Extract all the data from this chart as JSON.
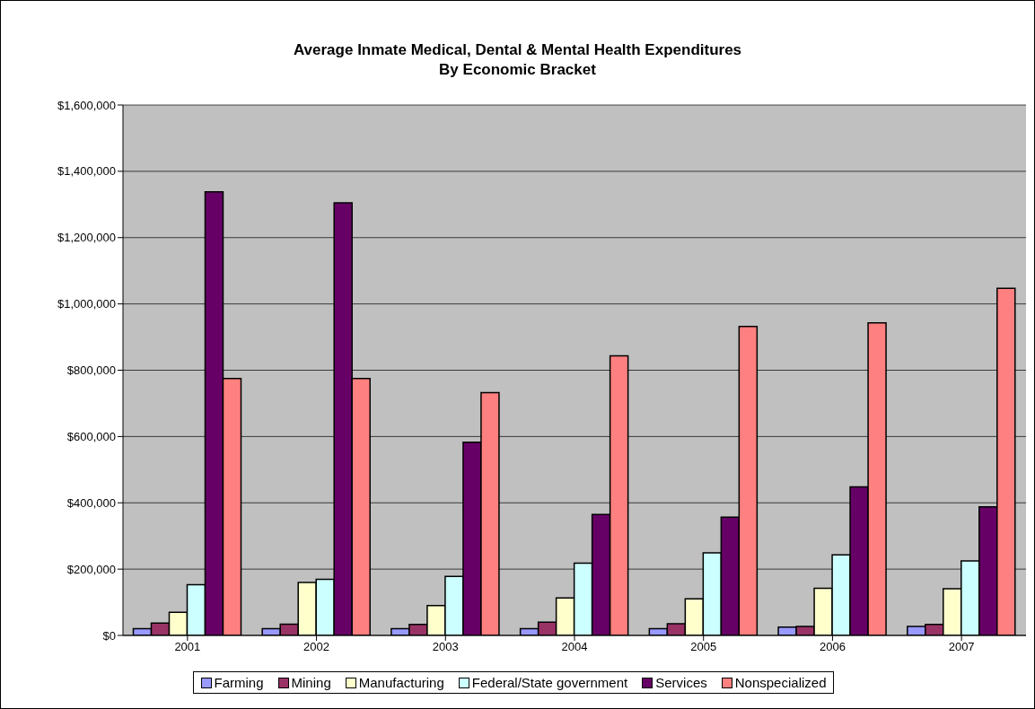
{
  "chart_data": {
    "type": "bar",
    "title": "Average Inmate Medical, Dental & Mental Health Expenditures\nBy Economic Bracket",
    "categories": [
      "2001",
      "2002",
      "2003",
      "2004",
      "2005",
      "2006",
      "2007"
    ],
    "series": [
      {
        "name": "Farming",
        "color": "#9999ff",
        "values": [
          20000,
          20000,
          20000,
          20000,
          20000,
          25000,
          27000
        ]
      },
      {
        "name": "Mining",
        "color": "#993366",
        "values": [
          37000,
          34000,
          33000,
          40000,
          35000,
          27000,
          33000
        ]
      },
      {
        "name": "Manufacturing",
        "color": "#ffffcc",
        "values": [
          70000,
          160000,
          90000,
          113000,
          110000,
          142000,
          141000
        ]
      },
      {
        "name": "Federal/State government",
        "color": "#ccffff",
        "values": [
          153000,
          169000,
          178000,
          218000,
          249000,
          243000,
          225000
        ]
      },
      {
        "name": "Services",
        "color": "#660066",
        "values": [
          1338000,
          1305000,
          583000,
          365000,
          357000,
          448000,
          388000
        ]
      },
      {
        "name": "Nonspecialized",
        "color": "#ff8080",
        "values": [
          775000,
          775000,
          732000,
          843000,
          932000,
          943000,
          1047000
        ]
      }
    ],
    "ylim": [
      0,
      1600000
    ],
    "yticks": [
      {
        "value": 0,
        "label": "$0"
      },
      {
        "value": 200000,
        "label": "$200,000"
      },
      {
        "value": 400000,
        "label": "$400,000"
      },
      {
        "value": 600000,
        "label": "$600,000"
      },
      {
        "value": 800000,
        "label": "$800,000"
      },
      {
        "value": 1000000,
        "label": "$1,000,000"
      },
      {
        "value": 1200000,
        "label": "$1,200,000"
      },
      {
        "value": 1400000,
        "label": "$1,400,000"
      },
      {
        "value": 1600000,
        "label": "$1,600,000"
      }
    ],
    "grid": "y",
    "legend": "bottom"
  }
}
